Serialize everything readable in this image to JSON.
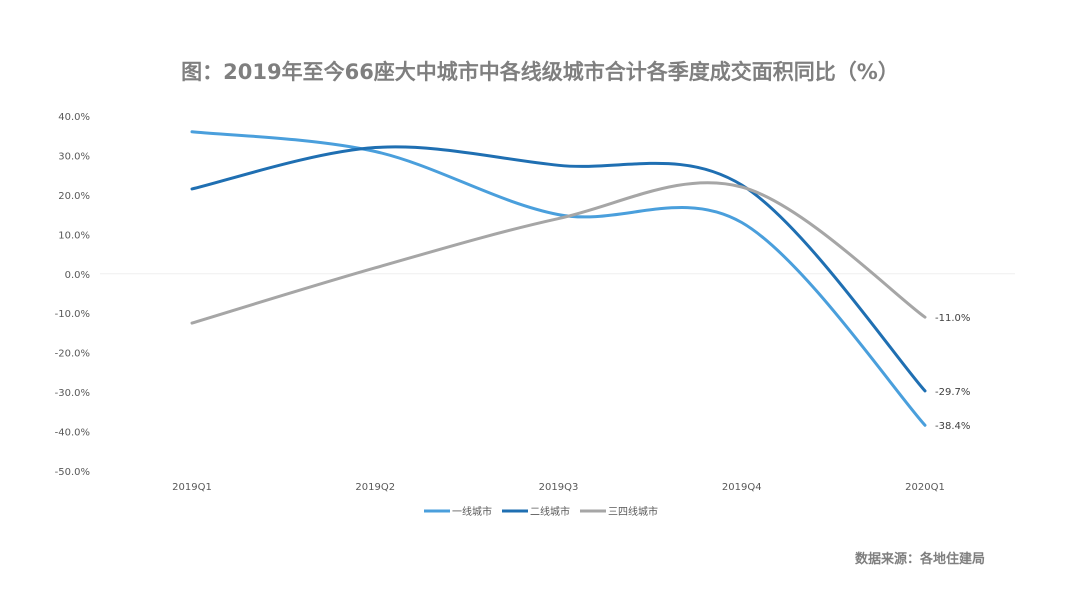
{
  "chart_data": {
    "type": "line",
    "title": "图：2019年至今66座大中城市中各线级城市合计各季度成交面积同比（%）",
    "categories": [
      "2019Q1",
      "2019Q2",
      "2019Q3",
      "2019Q4",
      "2020Q1"
    ],
    "ylim": [
      -50,
      40
    ],
    "yticks": [
      "40.0%",
      "30.0%",
      "20.0%",
      "10.0%",
      "0.0%",
      "-10.0%",
      "-20.0%",
      "-30.0%",
      "-40.0%",
      "-50.0%"
    ],
    "ytick_values": [
      40,
      30,
      20,
      10,
      0,
      -10,
      -20,
      -30,
      -40,
      -50
    ],
    "smooth": true,
    "legend_position": "bottom",
    "series": [
      {
        "name": "一线城市",
        "color": "#4a9fdc",
        "values": [
          36.0,
          31.0,
          15.0,
          13.0,
          -38.4
        ],
        "end_label": "-38.4%"
      },
      {
        "name": "二线城市",
        "color": "#1f6fb2",
        "values": [
          21.5,
          32.0,
          27.5,
          22.5,
          -29.7
        ],
        "end_label": "-29.7%"
      },
      {
        "name": "三四线城市",
        "color": "#a6a6a6",
        "values": [
          -12.5,
          1.5,
          14.0,
          22.0,
          -11.0
        ],
        "end_label": "-11.0%"
      }
    ]
  },
  "source": "数据来源：各地住建局"
}
